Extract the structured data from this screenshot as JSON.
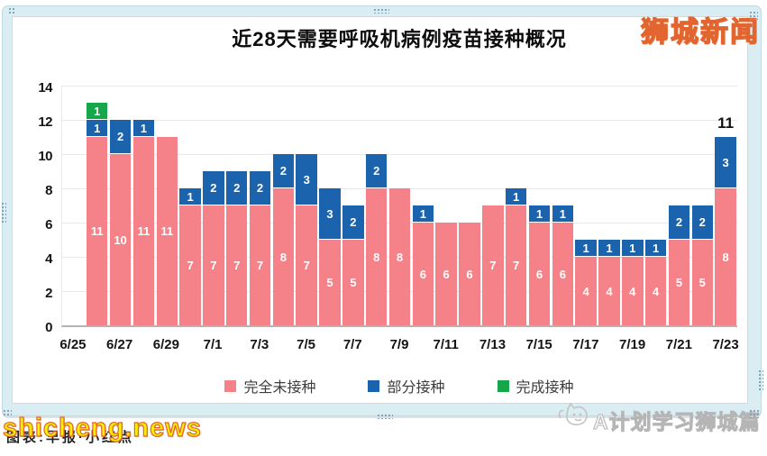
{
  "watermarks": {
    "site_logo": "狮城新闻",
    "site_url": "shicheng.news",
    "credit_line": "图表:早报·小红点",
    "channel": "A计划学习狮城篇"
  },
  "chart_data": {
    "type": "bar",
    "stacked": true,
    "title": "近28天需要呼吸机病例疫苗接种概况",
    "categories": [
      "6/25",
      "6/26",
      "6/27",
      "6/28",
      "6/29",
      "6/30",
      "7/1",
      "7/2",
      "7/3",
      "7/4",
      "7/5",
      "7/6",
      "7/7",
      "7/8",
      "7/9",
      "7/10",
      "7/11",
      "7/12",
      "7/13",
      "7/14",
      "7/15",
      "7/16",
      "7/17",
      "7/18",
      "7/19",
      "7/20",
      "7/21",
      "7/22",
      "7/23"
    ],
    "x_tick_labels": [
      "6/25",
      "6/27",
      "6/29",
      "7/1",
      "7/3",
      "7/5",
      "7/7",
      "7/9",
      "7/11",
      "7/13",
      "7/15",
      "7/17",
      "7/19",
      "7/21",
      "7/23"
    ],
    "series": [
      {
        "name": "完全未接种",
        "color": "#f58289",
        "values": [
          0,
          11,
          10,
          11,
          11,
          7,
          7,
          7,
          7,
          8,
          7,
          5,
          5,
          8,
          8,
          6,
          6,
          6,
          7,
          7,
          6,
          6,
          4,
          4,
          4,
          4,
          5,
          5,
          8
        ]
      },
      {
        "name": "部分接种",
        "color": "#1b64ad",
        "values": [
          0,
          1,
          2,
          1,
          0,
          1,
          2,
          2,
          2,
          2,
          3,
          3,
          2,
          2,
          0,
          1,
          0,
          0,
          0,
          1,
          1,
          1,
          1,
          1,
          1,
          1,
          2,
          2,
          3
        ]
      },
      {
        "name": "完成接种",
        "color": "#17a74b",
        "values": [
          0,
          1,
          0,
          0,
          0,
          0,
          0,
          0,
          0,
          0,
          0,
          0,
          0,
          0,
          0,
          0,
          0,
          0,
          0,
          0,
          0,
          0,
          0,
          0,
          0,
          0,
          0,
          0,
          0
        ]
      }
    ],
    "annotations": [
      {
        "category_index": 28,
        "text": "11"
      }
    ],
    "ylim": [
      0,
      14
    ],
    "yticks": [
      0,
      2,
      4,
      6,
      8,
      10,
      12,
      14
    ],
    "grid": true,
    "legend_position": "bottom"
  }
}
